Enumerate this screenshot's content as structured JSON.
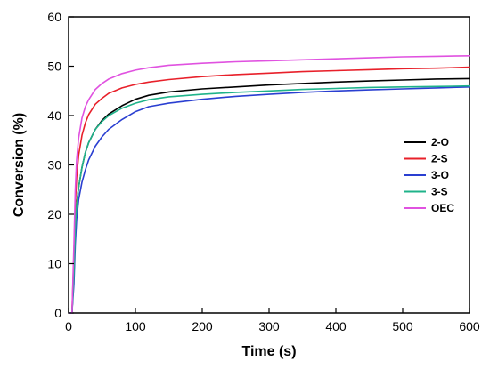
{
  "chart_data": {
    "type": "line",
    "xlabel": "Time (s)",
    "ylabel": "Conversion (%)",
    "xlim": [
      0,
      600
    ],
    "ylim": [
      0,
      60
    ],
    "xticks": [
      0,
      100,
      200,
      300,
      400,
      500,
      600
    ],
    "yticks": [
      0,
      10,
      20,
      30,
      40,
      50,
      60
    ],
    "grid": false,
    "legend_position": "center-right",
    "series": [
      {
        "name": "2-O",
        "color": "#000000",
        "x": [
          0,
          5,
          8,
          10,
          12,
          15,
          20,
          25,
          30,
          40,
          50,
          60,
          80,
          100,
          120,
          150,
          200,
          250,
          300,
          350,
          400,
          450,
          500,
          550,
          600
        ],
        "y": [
          0,
          0,
          8,
          17,
          22,
          25.5,
          29.5,
          32.5,
          34.5,
          37.2,
          39,
          40.3,
          42,
          43.3,
          44.1,
          44.8,
          45.4,
          45.8,
          46.2,
          46.5,
          46.8,
          47,
          47.2,
          47.4,
          47.5
        ]
      },
      {
        "name": "2-S",
        "color": "#e8202a",
        "x": [
          0,
          5,
          8,
          10,
          12,
          15,
          20,
          25,
          30,
          40,
          50,
          60,
          80,
          100,
          120,
          150,
          200,
          250,
          300,
          350,
          400,
          450,
          500,
          550,
          600
        ],
        "y": [
          0,
          0,
          12,
          22,
          27.5,
          32,
          36,
          38.5,
          40.2,
          42.3,
          43.5,
          44.5,
          45.6,
          46.3,
          46.8,
          47.3,
          47.9,
          48.3,
          48.6,
          48.9,
          49.1,
          49.3,
          49.5,
          49.6,
          49.8
        ]
      },
      {
        "name": "3-O",
        "color": "#2a3fd1",
        "x": [
          0,
          5,
          8,
          10,
          12,
          15,
          20,
          25,
          30,
          40,
          50,
          60,
          80,
          100,
          120,
          150,
          200,
          250,
          300,
          350,
          400,
          450,
          500,
          550,
          600
        ],
        "y": [
          0,
          0,
          6,
          14,
          19,
          23,
          26.5,
          29,
          31,
          33.8,
          35.7,
          37.2,
          39.2,
          40.8,
          41.8,
          42.5,
          43.3,
          43.9,
          44.3,
          44.7,
          45,
          45.2,
          45.4,
          45.6,
          45.8
        ]
      },
      {
        "name": "3-S",
        "color": "#1fb38a",
        "x": [
          0,
          5,
          8,
          10,
          12,
          15,
          20,
          25,
          30,
          40,
          50,
          60,
          80,
          100,
          120,
          150,
          200,
          250,
          300,
          350,
          400,
          450,
          500,
          550,
          600
        ],
        "y": [
          0,
          0,
          8,
          17,
          22,
          25.5,
          29.5,
          32.5,
          34.5,
          37.2,
          38.8,
          40,
          41.5,
          42.5,
          43.2,
          43.8,
          44.3,
          44.7,
          45,
          45.3,
          45.5,
          45.7,
          45.8,
          45.9,
          46
        ]
      },
      {
        "name": "OEC",
        "color": "#e052e0",
        "x": [
          0,
          5,
          8,
          10,
          12,
          15,
          20,
          25,
          30,
          40,
          50,
          60,
          80,
          100,
          120,
          150,
          200,
          250,
          300,
          350,
          400,
          450,
          500,
          550,
          600
        ],
        "y": [
          0,
          0,
          14,
          25,
          31,
          35.5,
          39.5,
          41.8,
          43.2,
          45.3,
          46.5,
          47.4,
          48.5,
          49.2,
          49.7,
          50.2,
          50.6,
          50.9,
          51.1,
          51.3,
          51.5,
          51.7,
          51.9,
          52,
          52.1
        ]
      }
    ]
  }
}
